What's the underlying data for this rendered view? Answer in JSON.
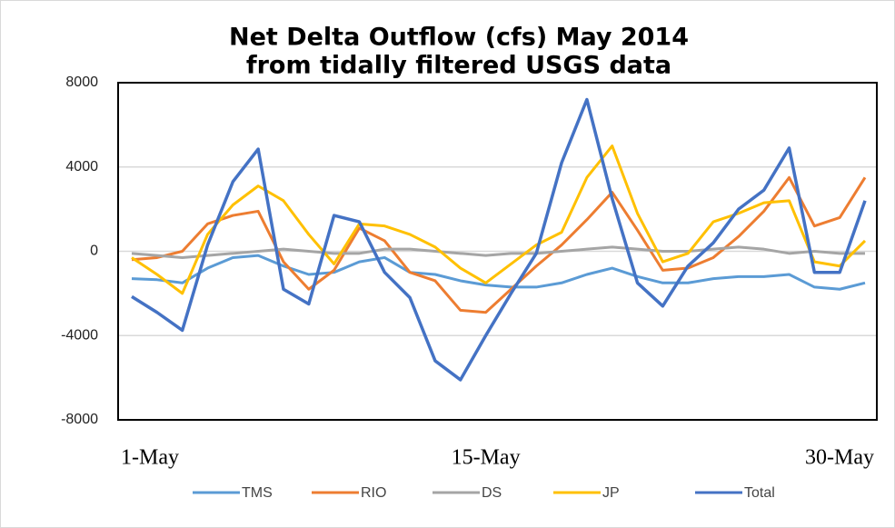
{
  "chart_data": {
    "type": "line",
    "title": "Net Delta Outflow (cfs) May 2014",
    "subtitle": "from tidally filtered USGS data",
    "categories": [
      "1-May",
      null,
      null,
      null,
      null,
      null,
      null,
      null,
      null,
      null,
      null,
      null,
      null,
      null,
      "15-May",
      null,
      null,
      null,
      null,
      null,
      null,
      null,
      null,
      null,
      null,
      null,
      null,
      null,
      null,
      "30-May"
    ],
    "ylim": [
      -8000,
      8000
    ],
    "yticks": [
      8000,
      4000,
      0,
      -4000,
      -8000
    ],
    "grid": true,
    "legend": "bottom",
    "series": [
      {
        "name": "TMS",
        "color": "#5b9bd5",
        "values": [
          -1300,
          -1350,
          -1500,
          -800,
          -300,
          -200,
          -700,
          -1100,
          -1000,
          -500,
          -300,
          -1000,
          -1100,
          -1400,
          -1600,
          -1700,
          -1700,
          -1500,
          -1100,
          -800,
          -1200,
          -1500,
          -1500,
          -1300,
          -1200,
          -1200,
          -1100,
          -1700,
          -1800,
          -1500
        ]
      },
      {
        "name": "RIO",
        "color": "#ed7d31",
        "values": [
          -400,
          -300,
          0,
          1300,
          1700,
          1900,
          -500,
          -1800,
          -900,
          1100,
          500,
          -1000,
          -1400,
          -2800,
          -2900,
          -1800,
          -700,
          300,
          1500,
          2800,
          1000,
          -900,
          -800,
          -300,
          700,
          1900,
          3500,
          1200,
          1600,
          3500
        ]
      },
      {
        "name": "DS",
        "color": "#a5a5a5",
        "values": [
          -100,
          -200,
          -300,
          -200,
          -100,
          0,
          100,
          0,
          -100,
          -100,
          100,
          100,
          0,
          -100,
          -200,
          -100,
          -100,
          0,
          100,
          200,
          100,
          0,
          0,
          100,
          200,
          100,
          -100,
          0,
          -100,
          -100
        ]
      },
      {
        "name": "JP",
        "color": "#ffc000",
        "values": [
          -300,
          -1100,
          -2000,
          800,
          2200,
          3100,
          2400,
          800,
          -600,
          1300,
          1200,
          800,
          200,
          -800,
          -1500,
          -600,
          300,
          900,
          3500,
          5000,
          1800,
          -500,
          -100,
          1400,
          1800,
          2300,
          2400,
          -500,
          -700,
          500
        ]
      },
      {
        "name": "Total",
        "color": "#4472c4",
        "values": [
          -2150,
          -2900,
          -3750,
          300,
          3300,
          4850,
          -1800,
          -2500,
          1700,
          1400,
          -1000,
          -2200,
          -5200,
          -6100,
          -4000,
          -2000,
          -100,
          4200,
          7200,
          2500,
          -1500,
          -2600,
          -700,
          400,
          2000,
          2900,
          4900,
          -1000,
          -1000,
          2400
        ]
      }
    ]
  }
}
